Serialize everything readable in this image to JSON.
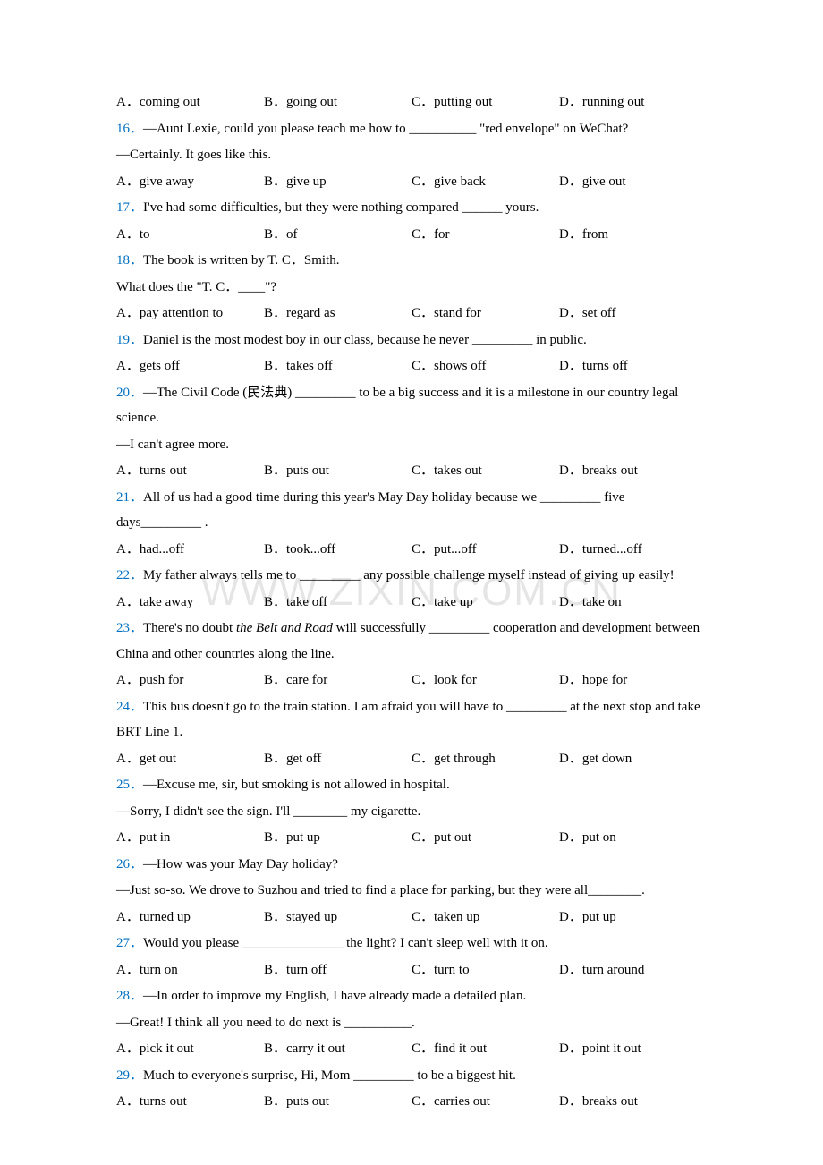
{
  "watermark": "WWW.ZIXIN.COM.CN",
  "colors": {
    "question_number": "#0070c0",
    "text": "#000000",
    "background": "#ffffff",
    "watermark": "rgba(0,0,0,0.1)"
  },
  "typography": {
    "font_family": "Times New Roman / Calibri",
    "font_size_pt": 11,
    "line_height": 1.9
  },
  "options_15": {
    "a": "A．coming out",
    "b": "B．going out",
    "c": "C．putting out",
    "d": "D．running out"
  },
  "q16": {
    "num": "16．",
    "text1": "—Aunt Lexie, could you please teach me how to __________ \"red envelope\" on WeChat?",
    "text2": "—Certainly. It goes like this.",
    "a": "A．give away",
    "b": "B．give up",
    "c": "C．give back",
    "d": "D．give out"
  },
  "q17": {
    "num": "17．",
    "text": "I've had some difficulties, but they were nothing compared ______ yours.",
    "a": "A．to",
    "b": "B．of",
    "c": "C．for",
    "d": "D．from"
  },
  "q18": {
    "num": "18．",
    "text1": "The book is written by T. C．Smith.",
    "text2": "What does the \"T. C．____\"?",
    "a": "A．pay attention to",
    "b": "B．regard as",
    "c": "C．stand for",
    "d": "D．set off"
  },
  "q19": {
    "num": "19．",
    "text": "Daniel is the most modest boy in our class, because he never _________ in public.",
    "a": "A．gets off",
    "b": "B．takes off",
    "c": "C．shows off",
    "d": "D．turns off"
  },
  "q20": {
    "num": "20．",
    "text1a": "—The Civil Code (",
    "text1cn": "民法典",
    "text1b": ") _________ to be a big success and it is a milestone in our country legal science.",
    "text2": "—I can't agree more.",
    "a": "A．turns out",
    "b": "B．puts out",
    "c": "C．takes out",
    "d": "D．breaks out"
  },
  "q21": {
    "num": "21．",
    "text": "All of us had a good time during this year's May Day holiday because we _________ five days_________ .",
    "a": "A．had...off",
    "b": "B．took...off",
    "c": "C．put...off",
    "d": "D．turned...off"
  },
  "q22": {
    "num": "22．",
    "text": "My father always tells me to _________ any possible challenge myself instead of giving up easily!",
    "a": "A．take away",
    "b": "B．take off",
    "c": "C．take up",
    "d": "D．take on"
  },
  "q23": {
    "num": "23．",
    "text1": "There's no doubt ",
    "text_italic": "the Belt and Road",
    "text2": " will successfully _________ cooperation and development between China and other countries along the line.",
    "a": "A．push for",
    "b": "B．care for",
    "c": "C．look for",
    "d": "D．hope for"
  },
  "q24": {
    "num": "24．",
    "text": "This bus doesn't go to the train station. I am afraid you will have to _________ at the next stop and take BRT Line 1.",
    "a": "A．get out",
    "b": "B．get off",
    "c": "C．get through",
    "d": "D．get down"
  },
  "q25": {
    "num": "25．",
    "text1": "—Excuse me, sir, but smoking is not allowed in hospital.",
    "text2": "—Sorry, I didn't see the sign. I'll ________ my cigarette.",
    "a": "A．put in",
    "b": "B．put up",
    "c": "C．put out",
    "d": "D．put on"
  },
  "q26": {
    "num": "26．",
    "text1": "—How was your May Day holiday?",
    "text2": "—Just so-so. We drove to Suzhou and tried to find a place for parking, but they were all________.",
    "a": "A．turned up",
    "b": "B．stayed up",
    "c": "C．taken up",
    "d": "D．put up"
  },
  "q27": {
    "num": "27．",
    "text": "Would you please _______________ the light? I can't sleep well with it on.",
    "a": "A．turn on",
    "b": "B．turn off",
    "c": "C．turn to",
    "d": "D．turn around"
  },
  "q28": {
    "num": "28．",
    "text1": "—In order to improve my English, I have already made a detailed plan.",
    "text2": "—Great! I think all you need to do next is __________.",
    "a": "A．pick it out",
    "b": "B．carry it out",
    "c": "C．find it out",
    "d": "D．point it out"
  },
  "q29": {
    "num": "29．",
    "text": "Much to everyone's surprise, Hi, Mom _________ to be a biggest hit.",
    "a": "A．turns out",
    "b": "B．puts out",
    "c": "C．carries out",
    "d": "D．breaks out"
  }
}
